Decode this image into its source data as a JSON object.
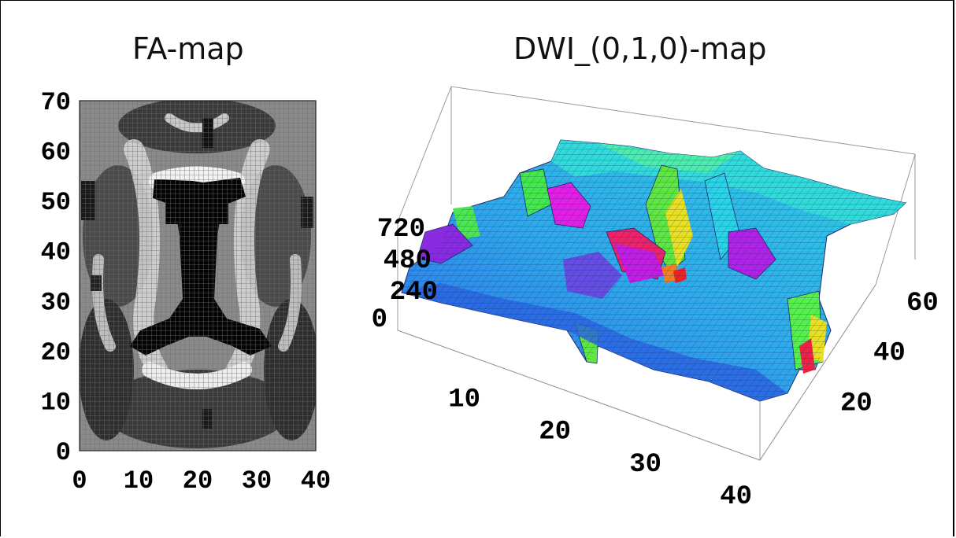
{
  "chart_data": [
    {
      "type": "heatmap",
      "title": "FA-map",
      "xlabel": "",
      "ylabel": "",
      "xlim": [
        0,
        40
      ],
      "ylim": [
        0,
        70
      ],
      "x_ticks": [
        "0",
        "10",
        "20",
        "30",
        "40"
      ],
      "y_ticks": [
        "0",
        "10",
        "20",
        "30",
        "40",
        "50",
        "60",
        "70"
      ],
      "colormap": "grayscale",
      "grid": true
    },
    {
      "type": "surface",
      "title": "DWI_(0,1,0)-map",
      "x_ticks": [
        "10",
        "20",
        "30",
        "40"
      ],
      "y_ticks": [
        "20",
        "40",
        "60"
      ],
      "z_ticks": [
        "0",
        "240",
        "480",
        "720"
      ],
      "xlim": [
        0,
        40
      ],
      "ylim": [
        0,
        70
      ],
      "zlim": [
        0,
        720
      ],
      "colormap": "hue (blue-cyan-green-yellow-red-magenta)",
      "colors": {
        "low": "#3a55e8",
        "mid": "#29d0e8",
        "green": "#5ef03a",
        "yellow": "#e8e820",
        "red": "#ee2244",
        "magenta": "#e01ee8",
        "purple": "#8a2be2"
      }
    }
  ]
}
